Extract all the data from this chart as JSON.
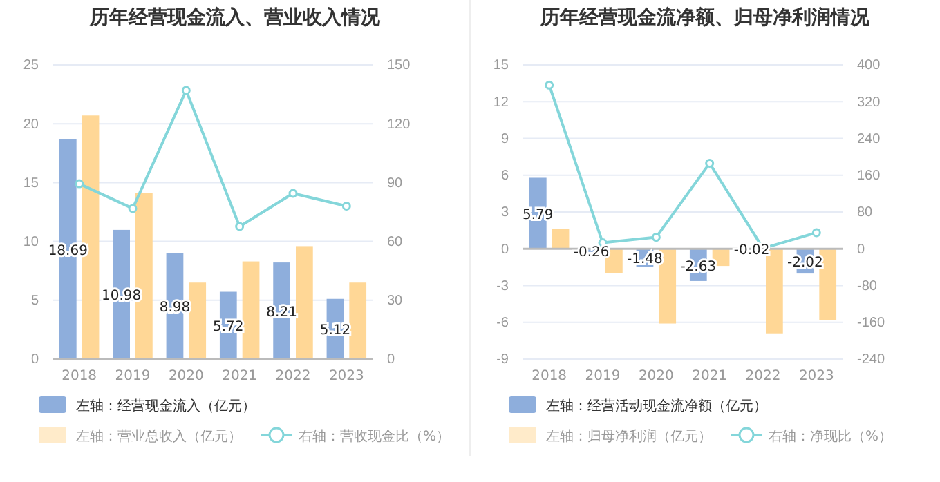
{
  "chart_data": [
    {
      "type": "bar",
      "title": "历年经营现金流入、营业收入情况",
      "categories": [
        "2018",
        "2019",
        "2020",
        "2021",
        "2022",
        "2023"
      ],
      "series": [
        {
          "name": "左轴：经营现金流入（亿元）",
          "color": "#8eaedc",
          "values": [
            18.69,
            10.98,
            8.98,
            5.72,
            8.21,
            5.12
          ],
          "value_labels": [
            "18.69",
            "10.98",
            "8.98",
            "5.72",
            "8.21",
            "5.12"
          ]
        },
        {
          "name": "左轴：营业总收入（亿元）",
          "color": "#ffd796",
          "values": [
            20.7,
            14.1,
            6.5,
            8.3,
            9.6,
            6.5
          ]
        },
        {
          "name": "右轴：营收现金比（%）",
          "type": "line",
          "axis": "y2",
          "color": "#84d6da",
          "values": [
            89.4,
            76.8,
            137,
            67.6,
            84.5,
            78
          ]
        }
      ],
      "ylim": [
        0,
        25
      ],
      "yticks": [
        0,
        5,
        10,
        15,
        20,
        25
      ],
      "y2lim": [
        0,
        150
      ],
      "y2ticks": [
        0,
        30,
        60,
        90,
        120,
        150
      ],
      "grid": "y",
      "legend": "bottom",
      "marker": "circle"
    },
    {
      "type": "bar",
      "title": "历年经营现金流净额、归母净利润情况",
      "categories": [
        "2018",
        "2019",
        "2020",
        "2021",
        "2022",
        "2023"
      ],
      "series": [
        {
          "name": "左轴：经营活动现金流净额（亿元）",
          "color": "#8eaedc",
          "values": [
            5.79,
            -0.26,
            -1.48,
            -2.63,
            -0.02,
            -2.02
          ],
          "value_labels": [
            "5.79",
            "-0.26",
            "-1.48",
            "-2.63",
            "-0.02",
            "-2.02"
          ]
        },
        {
          "name": "左轴：归母净利润（亿元）",
          "color": "#ffd796",
          "values": [
            1.6,
            -2.0,
            -6.1,
            -1.4,
            -6.9,
            -5.8
          ]
        },
        {
          "name": "右轴：净现比（%）",
          "type": "line",
          "axis": "y2",
          "color": "#84d6da",
          "values": [
            356,
            13,
            25,
            186,
            1,
            35
          ]
        }
      ],
      "ylim": [
        -9,
        15
      ],
      "yticks": [
        -9,
        -6,
        -3,
        0,
        3,
        6,
        9,
        12,
        15
      ],
      "y2lim": [
        -240,
        400
      ],
      "y2ticks": [
        -240,
        -160,
        -80,
        0,
        80,
        160,
        240,
        320,
        400
      ],
      "grid": "y",
      "legend": "bottom",
      "marker": "circle"
    }
  ]
}
